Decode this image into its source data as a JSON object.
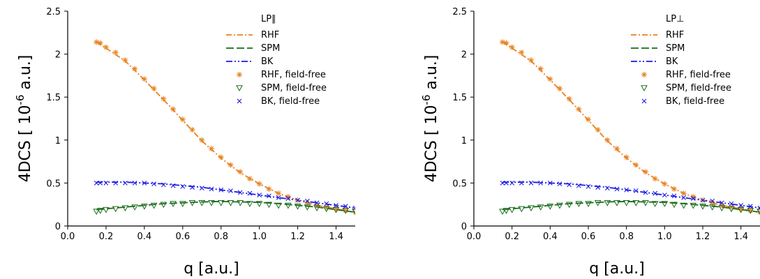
{
  "chart_data": [
    {
      "type": "line",
      "title": "LP∥",
      "xlabel": "q [a.u.]",
      "ylabel": "4DCS [ 10",
      "ylabel_exp": "-6",
      "ylabel_unit": " a.u.]",
      "xlim": [
        0.0,
        1.5
      ],
      "ylim": [
        0,
        2.5
      ],
      "xticks": [
        0.0,
        0.2,
        0.4,
        0.6,
        0.8,
        1.0,
        1.2,
        1.4
      ],
      "xtick_labels": [
        "0.0",
        "0.2",
        "0.4",
        "0.6",
        "0.8",
        "1.0",
        "1.2",
        "1.4"
      ],
      "yticks": [
        0,
        0.5,
        1,
        1.5,
        2,
        2.5
      ],
      "ytick_labels": [
        "0",
        "0.5",
        "1",
        "1.5",
        "2",
        "2.5"
      ],
      "grid": false,
      "legend": "top-right",
      "series": [
        {
          "name": "RHF",
          "style": "dashdot",
          "color": "#e8821e",
          "x": [
            0.15,
            0.2,
            0.3,
            0.4,
            0.5,
            0.6,
            0.7,
            0.8,
            0.9,
            1.0,
            1.1,
            1.2,
            1.3,
            1.4,
            1.5
          ],
          "y": [
            2.14,
            2.07,
            1.92,
            1.7,
            1.47,
            1.23,
            0.99,
            0.79,
            0.62,
            0.49,
            0.38,
            0.3,
            0.24,
            0.2,
            0.16
          ]
        },
        {
          "name": "SPM",
          "style": "dash",
          "color": "#1a6b1a",
          "x": [
            0.15,
            0.2,
            0.3,
            0.4,
            0.5,
            0.6,
            0.7,
            0.8,
            0.9,
            1.0,
            1.1,
            1.2,
            1.3,
            1.4,
            1.5
          ],
          "y": [
            0.19,
            0.2,
            0.22,
            0.24,
            0.26,
            0.27,
            0.28,
            0.285,
            0.28,
            0.275,
            0.26,
            0.24,
            0.22,
            0.19,
            0.16
          ]
        },
        {
          "name": "BK",
          "style": "dashdotdot",
          "color": "#1a1ae6",
          "x": [
            0.15,
            0.2,
            0.3,
            0.4,
            0.5,
            0.6,
            0.7,
            0.8,
            0.9,
            1.0,
            1.1,
            1.2,
            1.3,
            1.4,
            1.5
          ],
          "y": [
            0.51,
            0.51,
            0.51,
            0.5,
            0.49,
            0.47,
            0.45,
            0.42,
            0.39,
            0.36,
            0.33,
            0.3,
            0.27,
            0.24,
            0.21
          ]
        },
        {
          "name": "RHF, field-free",
          "style": "marker-asterisk",
          "color": "#e8821e",
          "x": [
            0.15,
            0.17,
            0.2,
            0.25,
            0.3,
            0.35,
            0.4,
            0.45,
            0.5,
            0.55,
            0.6,
            0.65,
            0.7,
            0.75,
            0.8,
            0.85,
            0.9,
            0.95,
            1.0,
            1.05,
            1.1,
            1.15,
            1.2,
            1.25,
            1.3,
            1.35,
            1.4,
            1.45,
            1.5
          ],
          "y": [
            2.14,
            2.13,
            2.08,
            2.02,
            1.93,
            1.83,
            1.71,
            1.6,
            1.48,
            1.36,
            1.24,
            1.12,
            1.0,
            0.9,
            0.8,
            0.71,
            0.63,
            0.55,
            0.49,
            0.43,
            0.38,
            0.34,
            0.3,
            0.27,
            0.24,
            0.22,
            0.2,
            0.18,
            0.16
          ]
        },
        {
          "name": "SPM, field-free",
          "style": "marker-triangle-down",
          "color": "#1a6b1a",
          "x": [
            0.15,
            0.17,
            0.2,
            0.25,
            0.3,
            0.35,
            0.4,
            0.45,
            0.5,
            0.55,
            0.6,
            0.65,
            0.7,
            0.75,
            0.8,
            0.85,
            0.9,
            0.95,
            1.0,
            1.05,
            1.1,
            1.15,
            1.2,
            1.25,
            1.3,
            1.35,
            1.4,
            1.45,
            1.5
          ],
          "y": [
            0.17,
            0.18,
            0.19,
            0.2,
            0.21,
            0.22,
            0.23,
            0.24,
            0.25,
            0.26,
            0.26,
            0.27,
            0.27,
            0.27,
            0.27,
            0.27,
            0.27,
            0.26,
            0.26,
            0.25,
            0.24,
            0.24,
            0.23,
            0.22,
            0.21,
            0.2,
            0.19,
            0.18,
            0.17
          ]
        },
        {
          "name": "BK, field-free",
          "style": "marker-x",
          "color": "#1a1ae6",
          "x": [
            0.15,
            0.17,
            0.2,
            0.25,
            0.3,
            0.35,
            0.4,
            0.45,
            0.5,
            0.55,
            0.6,
            0.65,
            0.7,
            0.75,
            0.8,
            0.85,
            0.9,
            0.95,
            1.0,
            1.05,
            1.1,
            1.15,
            1.2,
            1.25,
            1.3,
            1.35,
            1.4,
            1.45,
            1.5
          ],
          "y": [
            0.5,
            0.5,
            0.5,
            0.5,
            0.5,
            0.5,
            0.5,
            0.49,
            0.48,
            0.47,
            0.46,
            0.45,
            0.44,
            0.43,
            0.42,
            0.41,
            0.39,
            0.38,
            0.36,
            0.35,
            0.33,
            0.32,
            0.3,
            0.29,
            0.27,
            0.26,
            0.24,
            0.23,
            0.21
          ]
        }
      ]
    },
    {
      "type": "line",
      "title": "LP⊥",
      "xlabel": "q [a.u.]",
      "ylabel": "4DCS [ 10",
      "ylabel_exp": "-6",
      "ylabel_unit": " a.u.]",
      "xlim": [
        0.0,
        1.5
      ],
      "ylim": [
        0,
        2.5
      ],
      "xticks": [
        0.0,
        0.2,
        0.4,
        0.6,
        0.8,
        1.0,
        1.2,
        1.4
      ],
      "xtick_labels": [
        "0.0",
        "0.2",
        "0.4",
        "0.6",
        "0.8",
        "1.0",
        "1.2",
        "1.4"
      ],
      "yticks": [
        0,
        0.5,
        1,
        1.5,
        2,
        2.5
      ],
      "ytick_labels": [
        "0",
        "0.5",
        "1",
        "1.5",
        "2",
        "2.5"
      ],
      "grid": false,
      "legend": "top-right",
      "series": [
        {
          "name": "RHF",
          "style": "dashdot",
          "color": "#e8821e",
          "x": [
            0.15,
            0.2,
            0.3,
            0.4,
            0.5,
            0.6,
            0.7,
            0.8,
            0.9,
            1.0,
            1.1,
            1.2,
            1.3,
            1.4,
            1.5
          ],
          "y": [
            2.14,
            2.07,
            1.92,
            1.7,
            1.47,
            1.23,
            0.99,
            0.79,
            0.62,
            0.49,
            0.38,
            0.3,
            0.24,
            0.2,
            0.16
          ]
        },
        {
          "name": "SPM",
          "style": "dash",
          "color": "#1a6b1a",
          "x": [
            0.15,
            0.2,
            0.3,
            0.4,
            0.5,
            0.6,
            0.7,
            0.8,
            0.9,
            1.0,
            1.1,
            1.2,
            1.3,
            1.4,
            1.5
          ],
          "y": [
            0.19,
            0.2,
            0.22,
            0.24,
            0.26,
            0.27,
            0.28,
            0.285,
            0.28,
            0.275,
            0.26,
            0.24,
            0.22,
            0.19,
            0.16
          ]
        },
        {
          "name": "BK",
          "style": "dashdotdot",
          "color": "#1a1ae6",
          "x": [
            0.15,
            0.2,
            0.3,
            0.4,
            0.5,
            0.6,
            0.7,
            0.8,
            0.9,
            1.0,
            1.1,
            1.2,
            1.3,
            1.4,
            1.5
          ],
          "y": [
            0.51,
            0.51,
            0.51,
            0.5,
            0.49,
            0.47,
            0.45,
            0.42,
            0.39,
            0.36,
            0.33,
            0.3,
            0.27,
            0.24,
            0.21
          ]
        },
        {
          "name": "RHF, field-free",
          "style": "marker-asterisk",
          "color": "#e8821e",
          "x": [
            0.15,
            0.17,
            0.2,
            0.25,
            0.3,
            0.35,
            0.4,
            0.45,
            0.5,
            0.55,
            0.6,
            0.65,
            0.7,
            0.75,
            0.8,
            0.85,
            0.9,
            0.95,
            1.0,
            1.05,
            1.1,
            1.15,
            1.2,
            1.25,
            1.3,
            1.35,
            1.4,
            1.45,
            1.5
          ],
          "y": [
            2.14,
            2.13,
            2.08,
            2.02,
            1.93,
            1.83,
            1.71,
            1.6,
            1.48,
            1.36,
            1.24,
            1.12,
            1.0,
            0.9,
            0.8,
            0.71,
            0.63,
            0.55,
            0.49,
            0.43,
            0.38,
            0.34,
            0.3,
            0.27,
            0.24,
            0.22,
            0.2,
            0.18,
            0.16
          ]
        },
        {
          "name": "SPM, field-free",
          "style": "marker-triangle-down",
          "color": "#1a6b1a",
          "x": [
            0.15,
            0.17,
            0.2,
            0.25,
            0.3,
            0.35,
            0.4,
            0.45,
            0.5,
            0.55,
            0.6,
            0.65,
            0.7,
            0.75,
            0.8,
            0.85,
            0.9,
            0.95,
            1.0,
            1.05,
            1.1,
            1.15,
            1.2,
            1.25,
            1.3,
            1.35,
            1.4,
            1.45,
            1.5
          ],
          "y": [
            0.17,
            0.18,
            0.19,
            0.2,
            0.21,
            0.22,
            0.23,
            0.24,
            0.25,
            0.26,
            0.26,
            0.27,
            0.27,
            0.27,
            0.27,
            0.27,
            0.27,
            0.26,
            0.26,
            0.25,
            0.24,
            0.24,
            0.23,
            0.22,
            0.21,
            0.2,
            0.19,
            0.18,
            0.17
          ]
        },
        {
          "name": "BK, field-free",
          "style": "marker-x",
          "color": "#1a1ae6",
          "x": [
            0.15,
            0.17,
            0.2,
            0.25,
            0.3,
            0.35,
            0.4,
            0.45,
            0.5,
            0.55,
            0.6,
            0.65,
            0.7,
            0.75,
            0.8,
            0.85,
            0.9,
            0.95,
            1.0,
            1.05,
            1.1,
            1.15,
            1.2,
            1.25,
            1.3,
            1.35,
            1.4,
            1.45,
            1.5
          ],
          "y": [
            0.5,
            0.5,
            0.5,
            0.5,
            0.5,
            0.5,
            0.5,
            0.49,
            0.48,
            0.47,
            0.46,
            0.45,
            0.44,
            0.43,
            0.42,
            0.41,
            0.39,
            0.38,
            0.36,
            0.35,
            0.33,
            0.32,
            0.3,
            0.29,
            0.27,
            0.26,
            0.24,
            0.23,
            0.21
          ]
        }
      ]
    }
  ]
}
